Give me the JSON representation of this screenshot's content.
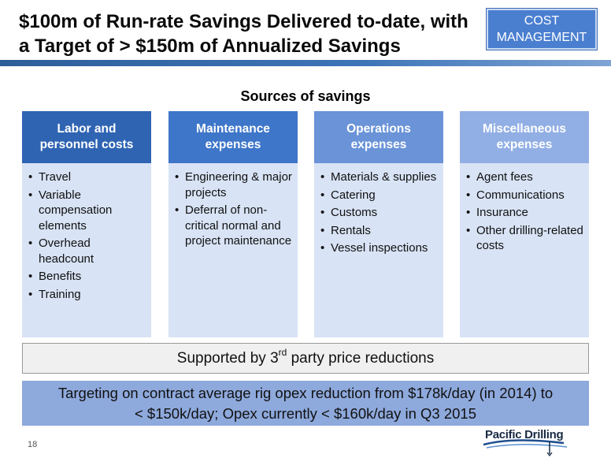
{
  "header": {
    "title_line1": "$100m of Run-rate Savings Delivered to-date, with",
    "title_line2": "a Target of > $150m of Annualized Savings",
    "badge_line1": "COST",
    "badge_line2": "MANAGEMENT"
  },
  "sources_title": "Sources of savings",
  "columns": [
    {
      "heading_line1": "Labor and",
      "heading_line2": "personnel costs",
      "color": "#2f64b3",
      "items": [
        "Travel",
        "Variable compensation elements",
        "Overhead headcount",
        "Benefits",
        "Training"
      ]
    },
    {
      "heading_line1": "Maintenance",
      "heading_line2": "expenses",
      "color": "#3e76c9",
      "items": [
        "Engineering & major projects",
        "Deferral of non-critical normal and project maintenance"
      ]
    },
    {
      "heading_line1": "Operations",
      "heading_line2": "expenses",
      "color": "#6a93d8",
      "items": [
        "Materials & supplies",
        "Catering",
        "Customs",
        "Rentals",
        "Vessel inspections"
      ]
    },
    {
      "heading_line1": "Miscellaneous",
      "heading_line2": "expenses",
      "color": "#91afe4",
      "items": [
        "Agent fees",
        "Communications",
        "Insurance",
        "Other drilling-related costs"
      ]
    }
  ],
  "support": {
    "prefix": "Supported by 3",
    "sup": "rd",
    "suffix": " party price reductions"
  },
  "target": {
    "line1": "Targeting on contract average rig opex reduction from $178k/day (in 2014) to",
    "line2": "< $150k/day; Opex currently < $160k/day in Q3 2015"
  },
  "footer": {
    "page_number": "18",
    "logo_text": "Pacific Drilling"
  },
  "colors": {
    "accent_blue": "#3e75b8",
    "column_body": "#d8e3f5",
    "target_bg": "#8ea9dc"
  }
}
